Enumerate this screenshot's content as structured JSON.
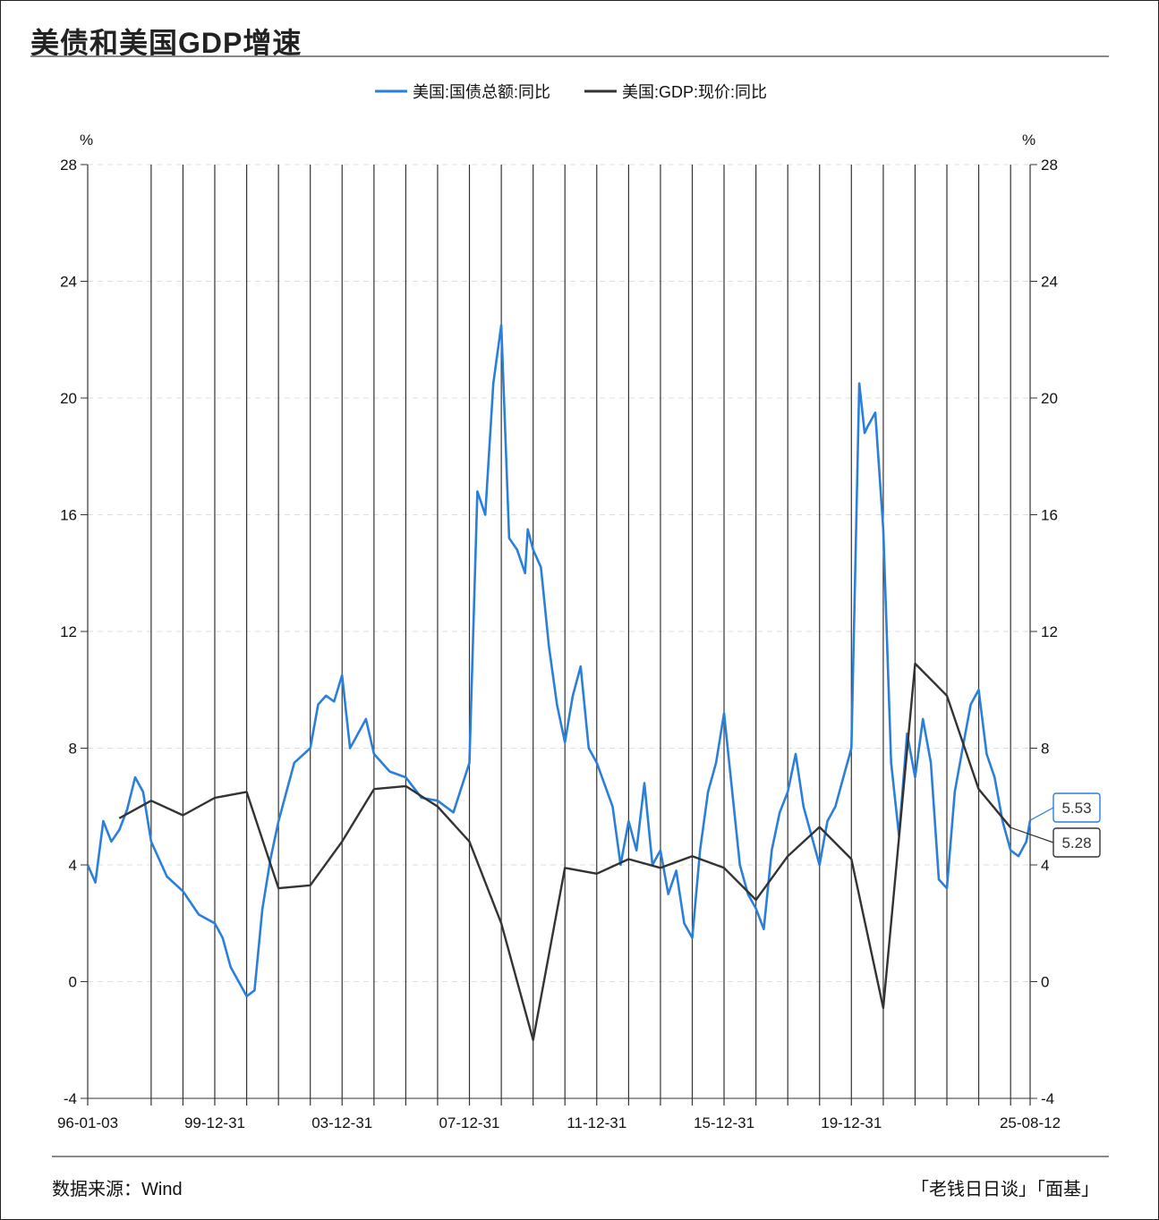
{
  "header": {
    "title": "美债和美国GDP增速"
  },
  "footer": {
    "source": "数据来源：Wind",
    "credit": "「老钱日日谈」「面基」"
  },
  "colors": {
    "debt": "#2a7fdb",
    "gdp": "#333333",
    "vertical_grid": "#333333",
    "dashed_grid": "#dddddd"
  },
  "chart_data": {
    "type": "line",
    "title": "美债和美国GDP增速",
    "y_unit_left": "%",
    "y_unit_right": "%",
    "ylim": [
      -4,
      28
    ],
    "y_ticks": [
      -4,
      0,
      4,
      8,
      12,
      16,
      20,
      24,
      28
    ],
    "xlim": [
      "1996-01-03",
      "2025-08-12"
    ],
    "x_tick_labels": [
      "96-01-03",
      "99-12-31",
      "03-12-31",
      "07-12-31",
      "11-12-31",
      "15-12-31",
      "19-12-31",
      "25-08-12"
    ],
    "vertical_gridlines_year_end": [
      1997,
      1998,
      1999,
      2000,
      2001,
      2002,
      2003,
      2004,
      2005,
      2006,
      2007,
      2008,
      2009,
      2010,
      2011,
      2012,
      2013,
      2014,
      2015,
      2016,
      2017,
      2018,
      2019,
      2020,
      2021,
      2022,
      2023,
      2024
    ],
    "legend_position": "top-center",
    "grid": true,
    "series": [
      {
        "name": "美国:国债总额:同比",
        "color": "#2a7fdb",
        "x": [
          "1996-01-03",
          "1996-03-31",
          "1996-06-30",
          "1996-09-30",
          "1996-12-31",
          "1997-03-31",
          "1997-06-30",
          "1997-09-30",
          "1997-12-31",
          "1998-06-30",
          "1998-12-31",
          "1999-06-30",
          "1999-12-31",
          "2000-03-31",
          "2000-06-30",
          "2000-09-30",
          "2000-12-31",
          "2001-03-31",
          "2001-06-30",
          "2001-09-30",
          "2001-12-31",
          "2002-06-30",
          "2002-12-31",
          "2003-03-31",
          "2003-06-30",
          "2003-09-30",
          "2003-12-31",
          "2004-03-31",
          "2004-06-30",
          "2004-09-30",
          "2004-12-31",
          "2005-06-30",
          "2005-12-31",
          "2006-06-30",
          "2006-12-31",
          "2007-06-30",
          "2007-12-31",
          "2008-03-31",
          "2008-06-30",
          "2008-09-30",
          "2008-12-31",
          "2009-03-31",
          "2009-06-30",
          "2009-09-30",
          "2009-10-31",
          "2009-12-31",
          "2010-03-31",
          "2010-06-30",
          "2010-09-30",
          "2010-12-31",
          "2011-03-31",
          "2011-06-30",
          "2011-09-30",
          "2011-12-31",
          "2012-06-30",
          "2012-09-30",
          "2012-12-31",
          "2013-03-31",
          "2013-06-30",
          "2013-09-30",
          "2013-12-31",
          "2014-03-31",
          "2014-06-30",
          "2014-09-30",
          "2014-12-31",
          "2015-03-31",
          "2015-06-30",
          "2015-09-30",
          "2015-12-31",
          "2016-06-30",
          "2016-09-30",
          "2016-12-31",
          "2017-03-31",
          "2017-06-30",
          "2017-09-30",
          "2017-12-31",
          "2018-03-31",
          "2018-06-30",
          "2018-12-31",
          "2019-03-31",
          "2019-06-30",
          "2019-09-30",
          "2019-12-31",
          "2020-03-31",
          "2020-05-31",
          "2020-06-30",
          "2020-09-30",
          "2020-12-31",
          "2021-03-31",
          "2021-06-30",
          "2021-09-30",
          "2021-12-31",
          "2022-03-31",
          "2022-06-30",
          "2022-09-30",
          "2022-12-31",
          "2023-03-31",
          "2023-06-30",
          "2023-09-30",
          "2023-12-31",
          "2024-03-31",
          "2024-06-30",
          "2024-09-30",
          "2024-12-31",
          "2025-03-31",
          "2025-06-30",
          "2025-08-12"
        ],
        "values": [
          4.0,
          3.4,
          5.5,
          4.8,
          5.2,
          5.9,
          7.0,
          6.5,
          4.8,
          3.6,
          3.1,
          2.3,
          2.0,
          1.5,
          0.5,
          0.0,
          -0.5,
          -0.3,
          2.5,
          4.2,
          5.5,
          7.5,
          8.0,
          9.5,
          9.8,
          9.6,
          10.5,
          8.0,
          8.5,
          9.0,
          7.8,
          7.2,
          7.0,
          6.3,
          6.2,
          5.8,
          7.5,
          16.8,
          16.0,
          20.5,
          22.5,
          15.2,
          14.8,
          14.0,
          15.5,
          14.8,
          14.2,
          11.5,
          9.5,
          8.2,
          9.8,
          10.8,
          8.0,
          7.5,
          6.0,
          4.0,
          5.5,
          4.5,
          6.8,
          4.0,
          4.5,
          3.0,
          3.8,
          2.0,
          1.5,
          4.5,
          6.5,
          7.5,
          9.2,
          4.0,
          3.0,
          2.5,
          1.8,
          4.5,
          5.8,
          6.5,
          7.8,
          6.0,
          4.0,
          5.5,
          6.0,
          7.0,
          8.0,
          20.5,
          18.8,
          19.0,
          19.5,
          15.5,
          7.5,
          5.0,
          8.5,
          7.0,
          9.0,
          7.5,
          3.5,
          3.2,
          6.5,
          8.0,
          9.5,
          10.0,
          7.8,
          7.0,
          5.5,
          4.5,
          4.3,
          4.8,
          5.53
        ]
      },
      {
        "name": "美国:GDP:现价:同比",
        "color": "#333333",
        "x": [
          "1996-12-31",
          "1997-12-31",
          "1998-12-31",
          "1999-12-31",
          "2000-12-31",
          "2001-12-31",
          "2002-12-31",
          "2003-12-31",
          "2004-12-31",
          "2005-12-31",
          "2006-12-31",
          "2007-12-31",
          "2008-12-31",
          "2009-12-31",
          "2010-12-31",
          "2011-12-31",
          "2012-12-31",
          "2013-12-31",
          "2014-12-31",
          "2015-12-31",
          "2016-12-31",
          "2017-12-31",
          "2018-12-31",
          "2019-12-31",
          "2020-12-31",
          "2021-12-31",
          "2022-12-31",
          "2023-12-31",
          "2024-12-31"
        ],
        "values": [
          5.6,
          6.2,
          5.7,
          6.3,
          6.5,
          3.2,
          3.3,
          4.8,
          6.6,
          6.7,
          6.0,
          4.8,
          2.0,
          -2.0,
          3.9,
          3.7,
          4.2,
          3.9,
          4.3,
          3.9,
          2.8,
          4.3,
          5.3,
          4.2,
          -0.9,
          10.9,
          9.8,
          6.6,
          5.28
        ]
      }
    ],
    "annotations": [
      {
        "series": "美国:国债总额:同比",
        "label": "5.53",
        "value": 5.53
      },
      {
        "series": "美国:GDP:现价:同比",
        "label": "5.28",
        "value": 5.28
      }
    ]
  }
}
